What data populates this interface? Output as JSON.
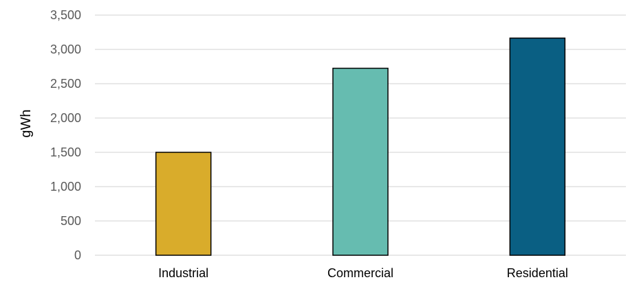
{
  "chart_data": {
    "type": "bar",
    "title": "",
    "xlabel": "",
    "ylabel": "gWh",
    "categories": [
      "Industrial",
      "Commercial",
      "Residential"
    ],
    "values": [
      1500,
      2725,
      3165
    ],
    "colors": [
      "#d9ac2b",
      "#66bcb0",
      "#0a5f83"
    ],
    "ylim": [
      0,
      3500
    ],
    "yticks": [
      0,
      500,
      1000,
      1500,
      2000,
      2500,
      3000,
      3500
    ],
    "ytick_labels": [
      "0",
      "500",
      "1,000",
      "1,500",
      "2,000",
      "2,500",
      "3,000",
      "3,500"
    ],
    "grid": true,
    "legend": "none"
  }
}
